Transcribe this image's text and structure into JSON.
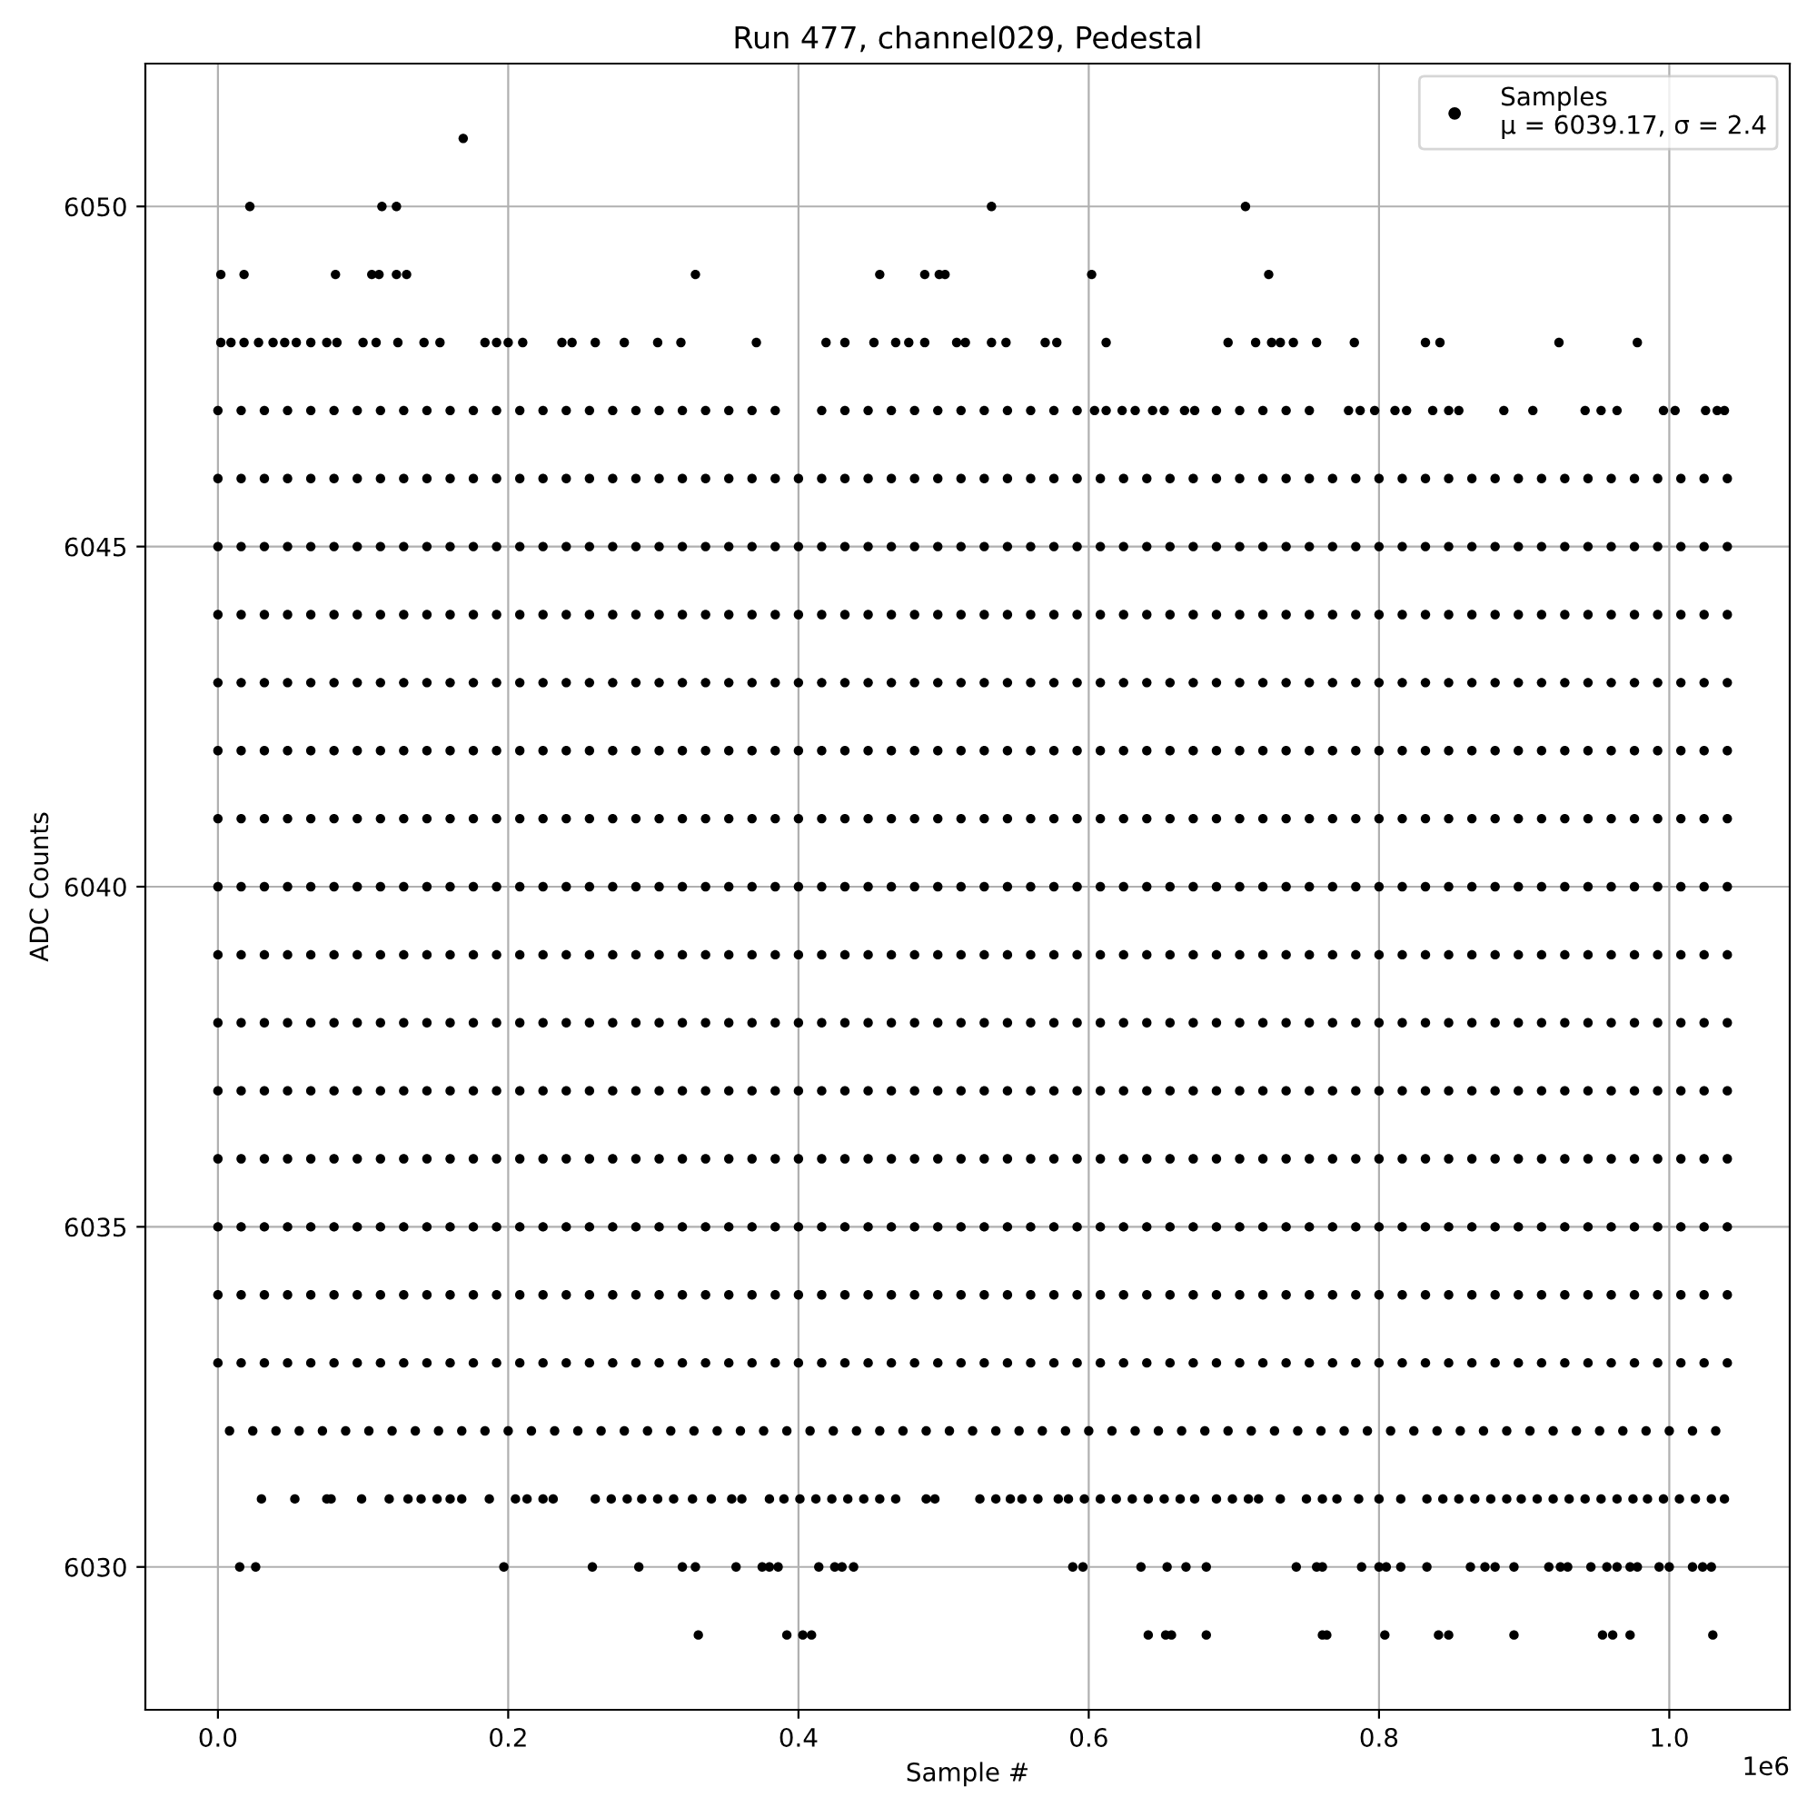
{
  "chart_data": {
    "type": "scatter",
    "title": "Run 477, channel029, Pedestal",
    "xlabel": "Sample #",
    "ylabel": "ADC Counts",
    "annotations": [
      "1e6"
    ],
    "xlim": [
      -0.05,
      1.083
    ],
    "ylim": [
      6027.9,
      6052.1
    ],
    "xticks": [
      {
        "value": 0,
        "label": "0.0"
      },
      0.2,
      0.4,
      0.6,
      0.8,
      {
        "value": 1,
        "label": "1.0"
      }
    ],
    "yticks": [
      6030,
      6035,
      6040,
      6045,
      6050
    ],
    "grid": true,
    "legend": "top right",
    "marker": "circle",
    "x": [
      0,
      0.016,
      0.032,
      0.048,
      0.064,
      0.08,
      0.096,
      0.112,
      0.128,
      0.144,
      0.16,
      0.176,
      0.192,
      0.208,
      0.224,
      0.24,
      0.256,
      0.272,
      0.288,
      0.304,
      0.32,
      0.336,
      0.352,
      0.368,
      0.384,
      0.4,
      0.416,
      0.432,
      0.448,
      0.464,
      0.48,
      0.496,
      0.512,
      0.528,
      0.544,
      0.56,
      0.576,
      0.592,
      0.608,
      0.624,
      0.64,
      0.656,
      0.672,
      0.688,
      0.704,
      0.72,
      0.736,
      0.752,
      0.768,
      0.784,
      0.8,
      0.816,
      0.832,
      0.848,
      0.864,
      0.88,
      0.896,
      0.912,
      0.928,
      0.944,
      0.96,
      0.976,
      0.992,
      1.008,
      1.024,
      1.04
    ],
    "series": [
      {
        "name": "Samples\nμ = 6039.17, σ = 2.4",
        "color": "#000000",
        "values": [
          6044,
          6044,
          6044,
          6044,
          6044,
          6044,
          6044,
          6044,
          6044,
          6044,
          6044,
          6044,
          6044,
          6044,
          6044,
          6044,
          6044,
          6044,
          6044,
          6044,
          6044,
          6044,
          6044,
          6044,
          6044,
          6044,
          6044,
          6044,
          6044,
          6044,
          6044,
          6044,
          6044,
          6044,
          6044,
          6044,
          6044,
          6044,
          6044,
          6044,
          6044,
          6044,
          6044,
          6044,
          6044,
          6044,
          6044,
          6044,
          6044,
          6044,
          6044,
          6044,
          6044,
          6044,
          6044,
          6044,
          6044,
          6044,
          6044,
          6044,
          6044,
          6044,
          6044,
          6044,
          6044,
          6044
        ]
      },
      {
        "color": "#000000",
        "values": [
          6033,
          6033,
          6033,
          6033,
          6033,
          6033,
          6033,
          6033,
          6033,
          6033,
          6033,
          6033,
          6033,
          6033,
          6033,
          6033,
          6033,
          6033,
          6033,
          6033,
          6033,
          6033,
          6033,
          6033,
          6033,
          6033,
          6033,
          6033,
          6033,
          6033,
          6033,
          6033,
          6033,
          6033,
          6033,
          6033,
          6033,
          6033,
          6033,
          6033,
          6033,
          6033,
          6033,
          6033,
          6033,
          6033,
          6033,
          6033,
          6033,
          6033,
          6033,
          6033,
          6033,
          6033,
          6033,
          6033,
          6033,
          6033,
          6033,
          6033,
          6033,
          6033,
          6033,
          6033,
          6033,
          6033
        ]
      },
      {
        "color": "#000000",
        "values": [
          6034,
          6034,
          6034,
          6034,
          6034,
          6034,
          6034,
          6034,
          6034,
          6034,
          6034,
          6034,
          6034,
          6034,
          6034,
          6034,
          6034,
          6034,
          6034,
          6034,
          6034,
          6034,
          6034,
          6034,
          6034,
          6034,
          6034,
          6034,
          6034,
          6034,
          6034,
          6034,
          6034,
          6034,
          6034,
          6034,
          6034,
          6034,
          6034,
          6034,
          6034,
          6034,
          6034,
          6034,
          6034,
          6034,
          6034,
          6034,
          6034,
          6034,
          6034,
          6034,
          6034,
          6034,
          6034,
          6034,
          6034,
          6034,
          6034,
          6034,
          6034,
          6034,
          6034,
          6034,
          6034,
          6034
        ]
      },
      {
        "color": "#000000",
        "values": [
          6035,
          6035,
          6035,
          6035,
          6035,
          6035,
          6035,
          6035,
          6035,
          6035,
          6035,
          6035,
          6035,
          6035,
          6035,
          6035,
          6035,
          6035,
          6035,
          6035,
          6035,
          6035,
          6035,
          6035,
          6035,
          6035,
          6035,
          6035,
          6035,
          6035,
          6035,
          6035,
          6035,
          6035,
          6035,
          6035,
          6035,
          6035,
          6035,
          6035,
          6035,
          6035,
          6035,
          6035,
          6035,
          6035,
          6035,
          6035,
          6035,
          6035,
          6035,
          6035,
          6035,
          6035,
          6035,
          6035,
          6035,
          6035,
          6035,
          6035,
          6035,
          6035,
          6035,
          6035,
          6035,
          6035
        ]
      },
      {
        "color": "#000000",
        "values": [
          6036,
          6036,
          6036,
          6036,
          6036,
          6036,
          6036,
          6036,
          6036,
          6036,
          6036,
          6036,
          6036,
          6036,
          6036,
          6036,
          6036,
          6036,
          6036,
          6036,
          6036,
          6036,
          6036,
          6036,
          6036,
          6036,
          6036,
          6036,
          6036,
          6036,
          6036,
          6036,
          6036,
          6036,
          6036,
          6036,
          6036,
          6036,
          6036,
          6036,
          6036,
          6036,
          6036,
          6036,
          6036,
          6036,
          6036,
          6036,
          6036,
          6036,
          6036,
          6036,
          6036,
          6036,
          6036,
          6036,
          6036,
          6036,
          6036,
          6036,
          6036,
          6036,
          6036,
          6036,
          6036,
          6036
        ]
      },
      {
        "color": "#000000",
        "values": [
          6037,
          6037,
          6037,
          6037,
          6037,
          6037,
          6037,
          6037,
          6037,
          6037,
          6037,
          6037,
          6037,
          6037,
          6037,
          6037,
          6037,
          6037,
          6037,
          6037,
          6037,
          6037,
          6037,
          6037,
          6037,
          6037,
          6037,
          6037,
          6037,
          6037,
          6037,
          6037,
          6037,
          6037,
          6037,
          6037,
          6037,
          6037,
          6037,
          6037,
          6037,
          6037,
          6037,
          6037,
          6037,
          6037,
          6037,
          6037,
          6037,
          6037,
          6037,
          6037,
          6037,
          6037,
          6037,
          6037,
          6037,
          6037,
          6037,
          6037,
          6037,
          6037,
          6037,
          6037,
          6037,
          6037
        ]
      },
      {
        "color": "#000000",
        "values": [
          6038,
          6038,
          6038,
          6038,
          6038,
          6038,
          6038,
          6038,
          6038,
          6038,
          6038,
          6038,
          6038,
          6038,
          6038,
          6038,
          6038,
          6038,
          6038,
          6038,
          6038,
          6038,
          6038,
          6038,
          6038,
          6038,
          6038,
          6038,
          6038,
          6038,
          6038,
          6038,
          6038,
          6038,
          6038,
          6038,
          6038,
          6038,
          6038,
          6038,
          6038,
          6038,
          6038,
          6038,
          6038,
          6038,
          6038,
          6038,
          6038,
          6038,
          6038,
          6038,
          6038,
          6038,
          6038,
          6038,
          6038,
          6038,
          6038,
          6038,
          6038,
          6038,
          6038,
          6038,
          6038,
          6038
        ]
      },
      {
        "color": "#000000",
        "values": [
          6039,
          6039,
          6039,
          6039,
          6039,
          6039,
          6039,
          6039,
          6039,
          6039,
          6039,
          6039,
          6039,
          6039,
          6039,
          6039,
          6039,
          6039,
          6039,
          6039,
          6039,
          6039,
          6039,
          6039,
          6039,
          6039,
          6039,
          6039,
          6039,
          6039,
          6039,
          6039,
          6039,
          6039,
          6039,
          6039,
          6039,
          6039,
          6039,
          6039,
          6039,
          6039,
          6039,
          6039,
          6039,
          6039,
          6039,
          6039,
          6039,
          6039,
          6039,
          6039,
          6039,
          6039,
          6039,
          6039,
          6039,
          6039,
          6039,
          6039,
          6039,
          6039,
          6039,
          6039,
          6039,
          6039
        ]
      },
      {
        "color": "#000000",
        "values": [
          6040,
          6040,
          6040,
          6040,
          6040,
          6040,
          6040,
          6040,
          6040,
          6040,
          6040,
          6040,
          6040,
          6040,
          6040,
          6040,
          6040,
          6040,
          6040,
          6040,
          6040,
          6040,
          6040,
          6040,
          6040,
          6040,
          6040,
          6040,
          6040,
          6040,
          6040,
          6040,
          6040,
          6040,
          6040,
          6040,
          6040,
          6040,
          6040,
          6040,
          6040,
          6040,
          6040,
          6040,
          6040,
          6040,
          6040,
          6040,
          6040,
          6040,
          6040,
          6040,
          6040,
          6040,
          6040,
          6040,
          6040,
          6040,
          6040,
          6040,
          6040,
          6040,
          6040,
          6040,
          6040,
          6040
        ]
      },
      {
        "color": "#000000",
        "values": [
          6041,
          6041,
          6041,
          6041,
          6041,
          6041,
          6041,
          6041,
          6041,
          6041,
          6041,
          6041,
          6041,
          6041,
          6041,
          6041,
          6041,
          6041,
          6041,
          6041,
          6041,
          6041,
          6041,
          6041,
          6041,
          6041,
          6041,
          6041,
          6041,
          6041,
          6041,
          6041,
          6041,
          6041,
          6041,
          6041,
          6041,
          6041,
          6041,
          6041,
          6041,
          6041,
          6041,
          6041,
          6041,
          6041,
          6041,
          6041,
          6041,
          6041,
          6041,
          6041,
          6041,
          6041,
          6041,
          6041,
          6041,
          6041,
          6041,
          6041,
          6041,
          6041,
          6041,
          6041,
          6041,
          6041
        ]
      },
      {
        "color": "#000000",
        "values": [
          6042,
          6042,
          6042,
          6042,
          6042,
          6042,
          6042,
          6042,
          6042,
          6042,
          6042,
          6042,
          6042,
          6042,
          6042,
          6042,
          6042,
          6042,
          6042,
          6042,
          6042,
          6042,
          6042,
          6042,
          6042,
          6042,
          6042,
          6042,
          6042,
          6042,
          6042,
          6042,
          6042,
          6042,
          6042,
          6042,
          6042,
          6042,
          6042,
          6042,
          6042,
          6042,
          6042,
          6042,
          6042,
          6042,
          6042,
          6042,
          6042,
          6042,
          6042,
          6042,
          6042,
          6042,
          6042,
          6042,
          6042,
          6042,
          6042,
          6042,
          6042,
          6042,
          6042,
          6042,
          6042,
          6042
        ]
      },
      {
        "color": "#000000",
        "values": [
          6043,
          6043,
          6043,
          6043,
          6043,
          6043,
          6043,
          6043,
          6043,
          6043,
          6043,
          6043,
          6043,
          6043,
          6043,
          6043,
          6043,
          6043,
          6043,
          6043,
          6043,
          6043,
          6043,
          6043,
          6043,
          6043,
          6043,
          6043,
          6043,
          6043,
          6043,
          6043,
          6043,
          6043,
          6043,
          6043,
          6043,
          6043,
          6043,
          6043,
          6043,
          6043,
          6043,
          6043,
          6043,
          6043,
          6043,
          6043,
          6043,
          6043,
          6043,
          6043,
          6043,
          6043,
          6043,
          6043,
          6043,
          6043,
          6043,
          6043,
          6043,
          6043,
          6043,
          6043,
          6043,
          6043
        ]
      },
      {
        "color": "#000000",
        "values": [
          6045,
          6045,
          6045,
          6045,
          6045,
          6045,
          6045,
          6045,
          6045,
          6045,
          6045,
          6045,
          6045,
          6045,
          6045,
          6045,
          6045,
          6045,
          6045,
          6045,
          6045,
          6045,
          6045,
          6045,
          6045,
          6045,
          6045,
          6045,
          6045,
          6045,
          6045,
          6045,
          6045,
          6045,
          6045,
          6045,
          6045,
          6045,
          6045,
          6045,
          6045,
          6045,
          6045,
          6045,
          6045,
          6045,
          6045,
          6045,
          6045,
          6045,
          6045,
          6045,
          6045,
          6045,
          6045,
          6045,
          6045,
          6045,
          6045,
          6045,
          6045,
          6045,
          6045,
          6045,
          6045,
          6045
        ]
      },
      {
        "color": "#000000",
        "values": [
          6046,
          6046,
          6046,
          6046,
          6046,
          6046,
          6046,
          6046,
          6046,
          6046,
          6046,
          6046,
          6046,
          6046,
          6046,
          6046,
          6046,
          6046,
          6046,
          6046,
          6046,
          6046,
          6046,
          6046,
          6046,
          6046,
          6046,
          6046,
          6046,
          6046,
          6046,
          6046,
          6046,
          6046,
          6046,
          6046,
          6046,
          6046,
          6046,
          6046,
          6046,
          6046,
          6046,
          6046,
          6046,
          6046,
          6046,
          6046,
          6046,
          6046,
          6046,
          6046,
          6046,
          6046,
          6046,
          6046,
          6046,
          6046,
          6046,
          6046,
          6046,
          6046,
          6046,
          6046,
          6046,
          6046
        ]
      },
      {
        "color": "#000000",
        "x": [
          0.008,
          0.024,
          0.04,
          0.056,
          0.072,
          0.088,
          0.104,
          0.12,
          0.136,
          0.152,
          0.168,
          0.184,
          0.2,
          0.216,
          0.232,
          0.248,
          0.264,
          0.28,
          0.296,
          0.312,
          0.328,
          0.344,
          0.36,
          0.376,
          0.392,
          0.408,
          0.424,
          0.44,
          0.456,
          0.472,
          0.488,
          0.504,
          0.52,
          0.536,
          0.552,
          0.568,
          0.584,
          0.6,
          0.616,
          0.632,
          0.648,
          0.664,
          0.68,
          0.696,
          0.712,
          0.728,
          0.744,
          0.76,
          0.776,
          0.792,
          0.808,
          0.824,
          0.84,
          0.856,
          0.872,
          0.888,
          0.904,
          0.92,
          0.936,
          0.952,
          0.968,
          0.984,
          1.0,
          1.016,
          1.032
        ],
        "values": [
          6032,
          6032,
          6032,
          6032,
          6032,
          6032,
          6032,
          6032,
          6032,
          6032,
          6032,
          6032,
          6032,
          6032,
          6032,
          6032,
          6032,
          6032,
          6032,
          6032,
          6032,
          6032,
          6032,
          6032,
          6032,
          6032,
          6032,
          6032,
          6032,
          6032,
          6032,
          6032,
          6032,
          6032,
          6032,
          6032,
          6032,
          6032,
          6032,
          6032,
          6032,
          6032,
          6032,
          6032,
          6032,
          6032,
          6032,
          6032,
          6032,
          6032,
          6032,
          6032,
          6032,
          6032,
          6032,
          6032,
          6032,
          6032,
          6032,
          6032,
          6032,
          6032,
          6032,
          6032,
          6032
        ]
      },
      {
        "color": "#000000",
        "x": [
          0,
          0.016,
          0.032,
          0.048,
          0.064,
          0.08,
          0.096,
          0.112,
          0.128,
          0.144,
          0.16,
          0.176,
          0.192,
          0.208,
          0.224,
          0.24,
          0.256,
          0.272,
          0.288,
          0.304,
          0.32,
          0.336,
          0.352,
          0.368,
          0.384,
          0.416,
          0.432,
          0.448,
          0.464,
          0.48,
          0.496,
          0.512,
          0.528,
          0.544,
          0.56,
          0.576,
          0.592,
          0.604,
          0.612,
          0.623,
          0.632,
          0.644,
          0.652,
          0.666,
          0.673,
          0.688,
          0.704,
          0.72,
          0.736,
          0.752,
          0.779,
          0.787,
          0.797,
          0.811,
          0.819,
          0.837,
          0.848,
          0.855,
          0.886,
          0.906,
          0.942,
          0.953,
          0.964,
          0.996,
          1.004,
          1.025,
          1.033,
          1.038
        ],
        "values": [
          6047,
          6047,
          6047,
          6047,
          6047,
          6047,
          6047,
          6047,
          6047,
          6047,
          6047,
          6047,
          6047,
          6047,
          6047,
          6047,
          6047,
          6047,
          6047,
          6047,
          6047,
          6047,
          6047,
          6047,
          6047,
          6047,
          6047,
          6047,
          6047,
          6047,
          6047,
          6047,
          6047,
          6047,
          6047,
          6047,
          6047,
          6047,
          6047,
          6047,
          6047,
          6047,
          6047,
          6047,
          6047,
          6047,
          6047,
          6047,
          6047,
          6047,
          6047,
          6047,
          6047,
          6047,
          6047,
          6047,
          6047,
          6047,
          6047,
          6047,
          6047,
          6047,
          6047,
          6047,
          6047,
          6047,
          6047,
          6047
        ]
      },
      {
        "color": "#000000",
        "x": [
          0.002,
          0.009,
          0.018,
          0.028,
          0.038,
          0.046,
          0.054,
          0.064,
          0.075,
          0.082,
          0.1,
          0.109,
          0.124,
          0.142,
          0.153,
          0.184,
          0.192,
          0.2,
          0.21,
          0.237,
          0.244,
          0.26,
          0.28,
          0.303,
          0.319,
          0.371,
          0.419,
          0.432,
          0.452,
          0.467,
          0.476,
          0.487,
          0.509,
          0.515,
          0.533,
          0.543,
          0.57,
          0.578,
          0.612,
          0.696,
          0.715,
          0.726,
          0.732,
          0.741,
          0.757,
          0.783,
          0.832,
          0.842,
          0.924,
          0.978
        ],
        "values": [
          6048,
          6048,
          6048,
          6048,
          6048,
          6048,
          6048,
          6048,
          6048,
          6048,
          6048,
          6048,
          6048,
          6048,
          6048,
          6048,
          6048,
          6048,
          6048,
          6048,
          6048,
          6048,
          6048,
          6048,
          6048,
          6048,
          6048,
          6048,
          6048,
          6048,
          6048,
          6048,
          6048,
          6048,
          6048,
          6048,
          6048,
          6048,
          6048,
          6048,
          6048,
          6048,
          6048,
          6048,
          6048,
          6048,
          6048,
          6048,
          6048,
          6048
        ]
      },
      {
        "color": "#000000",
        "x": [
          0.002,
          0.018,
          0.081,
          0.106,
          0.111,
          0.123,
          0.13,
          0.329,
          0.456,
          0.487,
          0.497,
          0.501,
          0.602,
          0.724
        ],
        "values": [
          6049,
          6049,
          6049,
          6049,
          6049,
          6049,
          6049,
          6049,
          6049,
          6049,
          6049,
          6049,
          6049,
          6049
        ]
      },
      {
        "color": "#000000",
        "x": [
          0.022,
          0.113,
          0.123,
          0.533,
          0.708
        ],
        "values": [
          6050,
          6050,
          6050,
          6050,
          6050
        ]
      },
      {
        "color": "#000000",
        "x": [
          0.169
        ],
        "values": [
          6051
        ]
      },
      {
        "color": "#000000",
        "x": [
          0.03,
          0.053,
          0.075,
          0.078,
          0.099,
          0.118,
          0.131,
          0.14,
          0.151,
          0.16,
          0.168,
          0.187,
          0.205,
          0.213,
          0.224,
          0.231,
          0.26,
          0.271,
          0.282,
          0.292,
          0.303,
          0.314,
          0.327,
          0.34,
          0.354,
          0.361,
          0.38,
          0.39,
          0.401,
          0.412,
          0.423,
          0.434,
          0.445,
          0.456,
          0.467,
          0.488,
          0.494,
          0.525,
          0.536,
          0.546,
          0.554,
          0.565,
          0.579,
          0.586,
          0.597,
          0.608,
          0.619,
          0.63,
          0.641,
          0.652,
          0.663,
          0.673,
          0.688,
          0.699,
          0.71,
          0.717,
          0.732,
          0.75,
          0.761,
          0.771,
          0.786,
          0.8,
          0.815,
          0.833,
          0.844,
          0.855,
          0.866,
          0.877,
          0.888,
          0.898,
          0.909,
          0.92,
          0.931,
          0.942,
          0.953,
          0.964,
          0.975,
          0.985,
          0.996,
          1.007,
          1.018,
          1.029,
          1.038
        ],
        "values": [
          6031,
          6031,
          6031,
          6031,
          6031,
          6031,
          6031,
          6031,
          6031,
          6031,
          6031,
          6031,
          6031,
          6031,
          6031,
          6031,
          6031,
          6031,
          6031,
          6031,
          6031,
          6031,
          6031,
          6031,
          6031,
          6031,
          6031,
          6031,
          6031,
          6031,
          6031,
          6031,
          6031,
          6031,
          6031,
          6031,
          6031,
          6031,
          6031,
          6031,
          6031,
          6031,
          6031,
          6031,
          6031,
          6031,
          6031,
          6031,
          6031,
          6031,
          6031,
          6031,
          6031,
          6031,
          6031,
          6031,
          6031,
          6031,
          6031,
          6031,
          6031,
          6031,
          6031,
          6031,
          6031,
          6031,
          6031,
          6031,
          6031,
          6031,
          6031,
          6031,
          6031,
          6031,
          6031,
          6031,
          6031,
          6031,
          6031,
          6031,
          6031,
          6031,
          6031
        ]
      },
      {
        "color": "#000000",
        "x": [
          0.015,
          0.026,
          0.197,
          0.258,
          0.29,
          0.32,
          0.329,
          0.357,
          0.375,
          0.38,
          0.386,
          0.414,
          0.425,
          0.43,
          0.438,
          0.589,
          0.596,
          0.636,
          0.654,
          0.667,
          0.681,
          0.743,
          0.757,
          0.761,
          0.788,
          0.8,
          0.805,
          0.815,
          0.833,
          0.863,
          0.873,
          0.88,
          0.893,
          0.917,
          0.925,
          0.93,
          0.946,
          0.957,
          0.964,
          0.973,
          0.978,
          0.993,
          1.0,
          1.016,
          1.023,
          1.029
        ],
        "values": [
          6030,
          6030,
          6030,
          6030,
          6030,
          6030,
          6030,
          6030,
          6030,
          6030,
          6030,
          6030,
          6030,
          6030,
          6030,
          6030,
          6030,
          6030,
          6030,
          6030,
          6030,
          6030,
          6030,
          6030,
          6030,
          6030,
          6030,
          6030,
          6030,
          6030,
          6030,
          6030,
          6030,
          6030,
          6030,
          6030,
          6030,
          6030,
          6030,
          6030,
          6030,
          6030,
          6030,
          6030,
          6030,
          6030
        ]
      },
      {
        "color": "#000000",
        "x": [
          0.331,
          0.392,
          0.403,
          0.409,
          0.641,
          0.653,
          0.657,
          0.681,
          0.761,
          0.764,
          0.804,
          0.841,
          0.848,
          0.893,
          0.954,
          0.961,
          0.973,
          1.03
        ],
        "values": [
          6029,
          6029,
          6029,
          6029,
          6029,
          6029,
          6029,
          6029,
          6029,
          6029,
          6029,
          6029,
          6029,
          6029,
          6029,
          6029,
          6029,
          6029
        ]
      }
    ]
  }
}
